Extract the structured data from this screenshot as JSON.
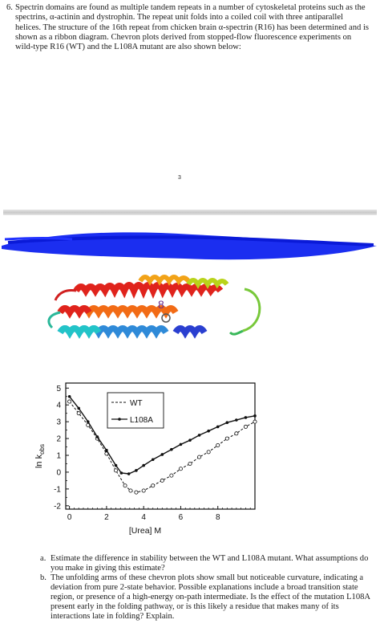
{
  "question": {
    "number": "6.",
    "text": "Spectrin domains are found as multiple tandem repeats in a number of cytoskeletal proteins such as the spectrins, α-actinin and dystrophin. The repeat unit folds into a coiled coil with three antiparallel helices. The structure of the 16th repeat from chicken brain α-spectrin (R16) has been determined and is shown as a ribbon diagram. Chevron plots derived from stopped-flow fluorescence experiments on wild-type R16 (WT) and the L108A mutant are also shown below:"
  },
  "page_number": "3",
  "ribbon_label": "8",
  "chart_data": {
    "type": "line",
    "xlabel": "[Urea] M",
    "ylabel": "ln kobs",
    "ylabel_main": "ln k",
    "ylabel_sub": "obs",
    "xlim": [
      -0.2,
      10
    ],
    "ylim": [
      -2.2,
      5.3
    ],
    "x_ticks": [
      "0",
      "2",
      "4",
      "6",
      "8"
    ],
    "y_ticks": [
      "5",
      "4",
      "3",
      "2",
      "1",
      "0",
      "-1",
      "-2"
    ],
    "legend": {
      "placement": "top-center",
      "entries": [
        "WT",
        "L108A"
      ]
    },
    "series": [
      {
        "name": "WT",
        "x": [
          0,
          0.5,
          1,
          1.5,
          2,
          2.5,
          3,
          3.3,
          3.6,
          4,
          4.5,
          5,
          5.5,
          6,
          6.5,
          7,
          7.5,
          8,
          8.5,
          9,
          9.5,
          10
        ],
        "y": [
          4.2,
          3.5,
          2.8,
          2.0,
          1.1,
          0.1,
          -0.8,
          -1.1,
          -1.2,
          -1.1,
          -0.8,
          -0.5,
          -0.2,
          0.2,
          0.5,
          0.9,
          1.2,
          1.6,
          2.0,
          2.3,
          2.7,
          3.0
        ]
      },
      {
        "name": "L108A",
        "x": [
          0,
          0.5,
          1,
          1.5,
          2,
          2.5,
          2.8,
          3.2,
          3.6,
          4,
          4.5,
          5,
          5.5,
          6,
          6.5,
          7,
          7.5,
          8,
          8.5,
          9,
          9.5,
          10
        ],
        "y": [
          4.5,
          3.8,
          3.0,
          2.1,
          1.3,
          0.4,
          -0.05,
          -0.1,
          0.1,
          0.4,
          0.75,
          1.05,
          1.35,
          1.65,
          1.9,
          2.2,
          2.45,
          2.7,
          2.95,
          3.1,
          3.25,
          3.35
        ]
      }
    ]
  },
  "sub_questions": [
    {
      "letter": "a.",
      "text": "Estimate the difference in stability between the WT and L108A mutant. What assumptions do you make in giving this estimate?"
    },
    {
      "letter": "b.",
      "text": "The unfolding arms of these chevron plots show small but noticeable curvature, indicating a deviation from pure 2-state behavior. Possible explanations include a broad transition state region, or presence of a high-energy on-path intermediate. Is the effect of the mutation L108A present early in the folding pathway, or is this likely a residue that makes many of its interactions late in folding? Explain."
    }
  ]
}
